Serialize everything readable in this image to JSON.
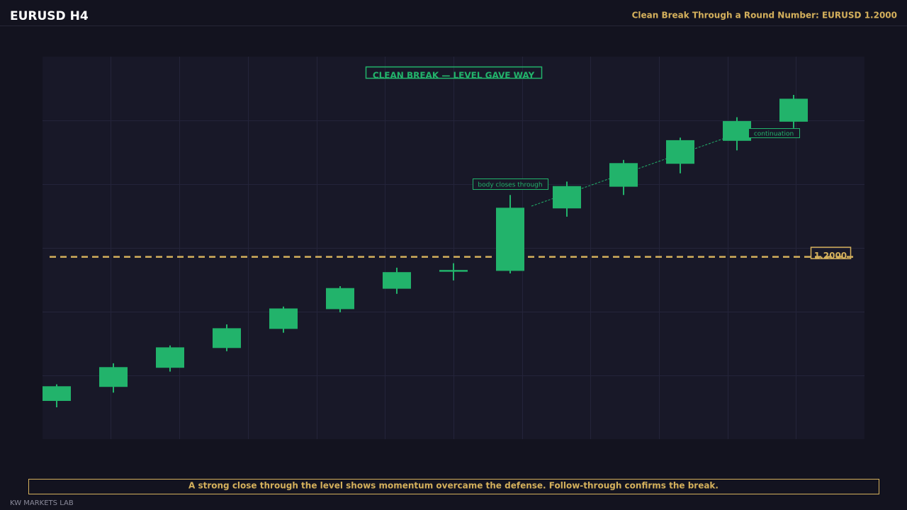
{
  "header": {
    "symbol": "EURUSD  H4",
    "title": "Clean Break Through a Round Number: EURUSD 1.2000"
  },
  "chart_data": {
    "type": "candlestick",
    "categories": [
      null,
      null,
      null,
      null,
      null,
      null,
      null,
      null,
      null,
      null,
      null,
      null,
      null,
      null
    ],
    "open": [
      1.19774,
      1.19796,
      1.19826,
      1.19857,
      1.19887,
      1.19918,
      1.1995,
      1.19978,
      1.19978,
      1.20076,
      1.2011,
      1.20146,
      1.20182,
      1.20212
    ],
    "high": [
      1.198,
      1.19833,
      1.19861,
      1.19894,
      1.19922,
      1.19954,
      1.19983,
      1.1999,
      1.20097,
      1.20118,
      1.20152,
      1.20187,
      1.20219,
      1.20254
    ],
    "low": [
      1.19764,
      1.19787,
      1.1982,
      1.19852,
      1.19881,
      1.19913,
      1.19942,
      1.19963,
      1.19974,
      1.20063,
      1.20097,
      1.20131,
      1.20167,
      1.20202
    ],
    "close": [
      1.19797,
      1.19827,
      1.19858,
      1.19888,
      1.19919,
      1.19951,
      1.19976,
      1.19978,
      1.20077,
      1.20111,
      1.20147,
      1.20183,
      1.20213,
      1.20248
    ],
    "color": "#22b36b",
    "ylim": [
      1.19714,
      1.20314
    ],
    "yticks": [
      1.19814,
      1.19914,
      1.20014,
      1.20114,
      1.20214
    ],
    "grid": true,
    "level": {
      "value": 1.2,
      "label": "1.2000",
      "color": "#d4b05c"
    },
    "annotations": {
      "headline": "CLEAN BREAK  —  LEVEL GAVE WAY",
      "break": "body closes through",
      "continuation": "continuation"
    }
  },
  "caption": "A strong close through the level shows momentum overcame the defense. Follow-through confirms the break.",
  "footer": "KW MARKETS LAB"
}
